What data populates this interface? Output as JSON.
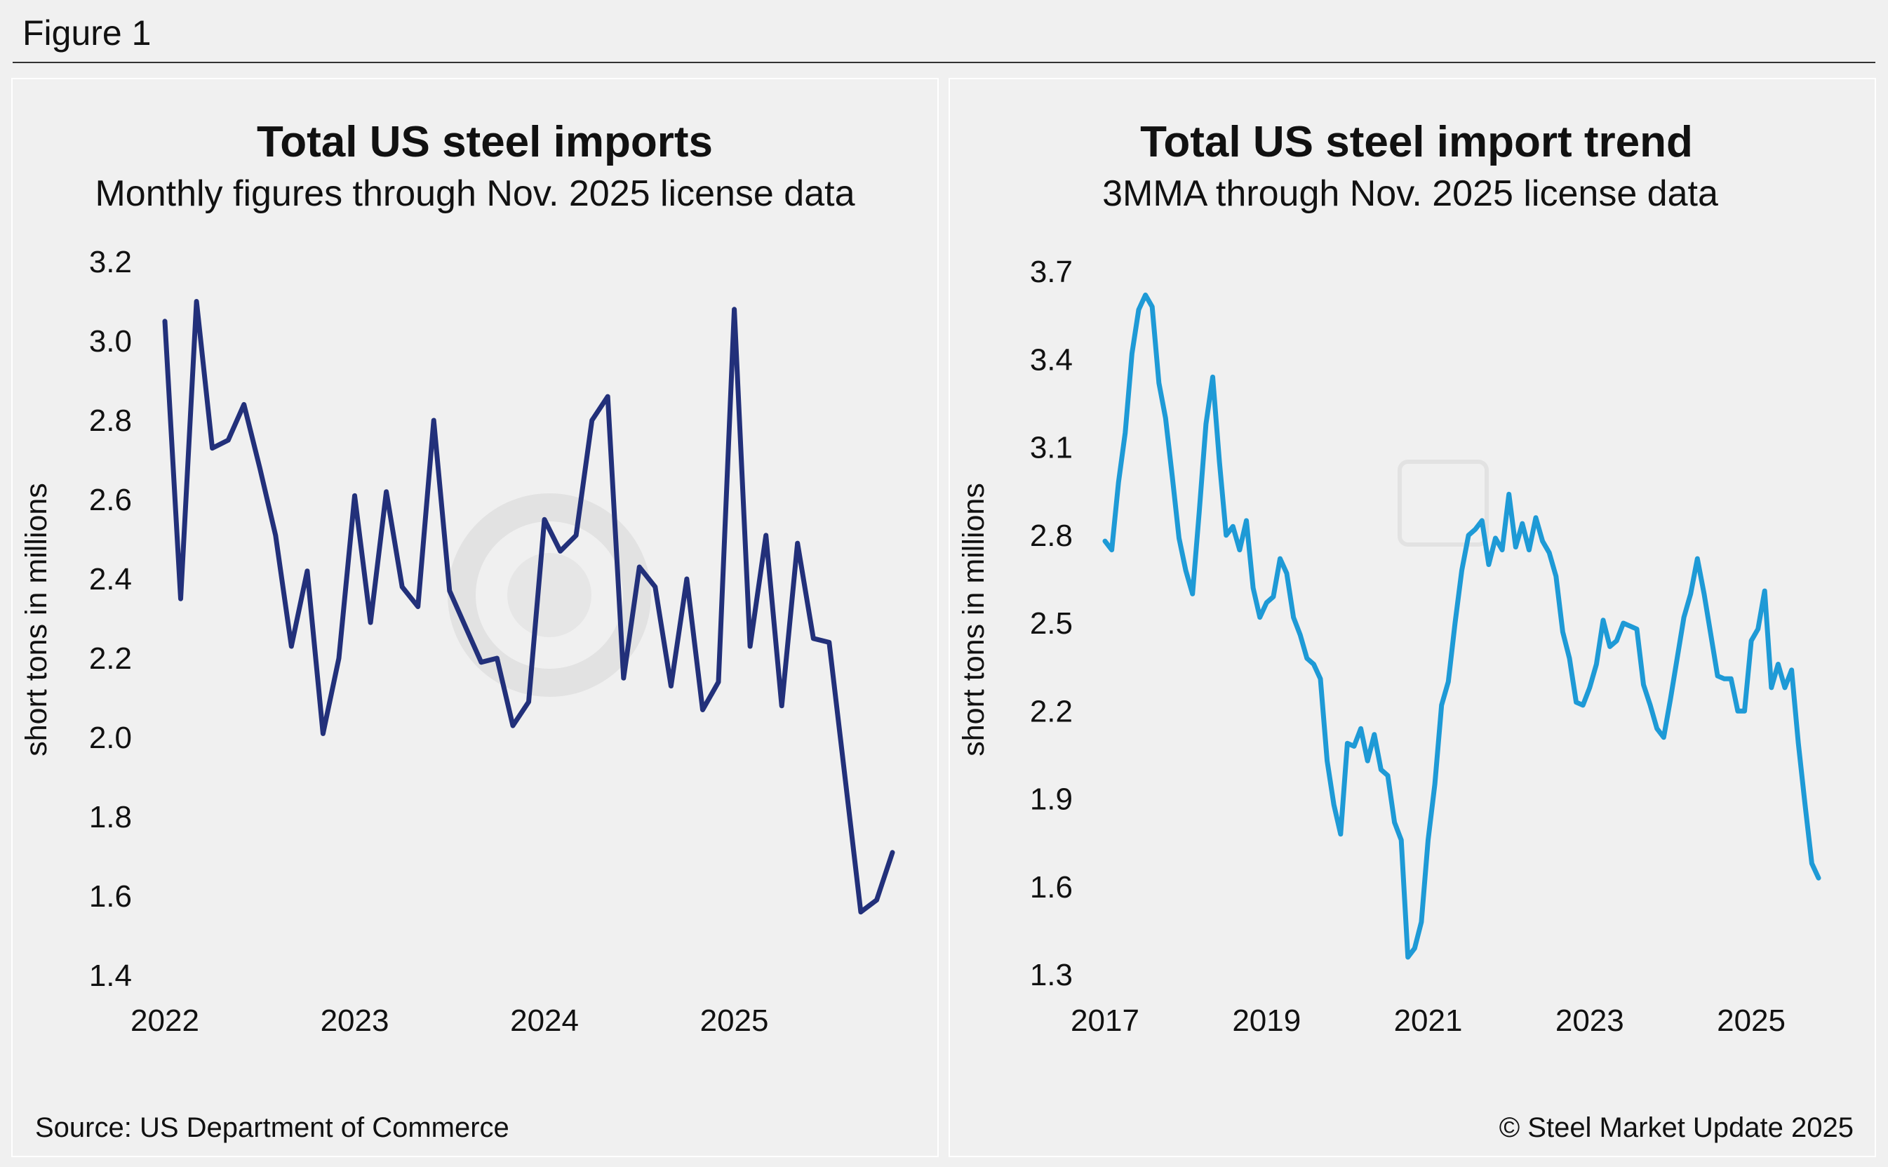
{
  "figure_label": "Figure 1",
  "source": "Source: US Department of Commerce",
  "copyright": "© Steel Market Update 2025",
  "colors": {
    "left_line": "#22307a",
    "right_line": "#1e9ad6",
    "background": "#f0f0f0"
  },
  "chart_data": [
    {
      "type": "line",
      "title": "Total US steel imports",
      "subtitle": "Monthly figures through Nov. 2025 license data",
      "ylabel": "short tons in millions",
      "xlabel": "",
      "ylim": [
        1.4,
        3.2
      ],
      "yticks": [
        "1.4",
        "1.6",
        "1.8",
        "2.0",
        "2.2",
        "2.4",
        "2.6",
        "2.8",
        "3.0",
        "3.2"
      ],
      "xticks": [
        "2022",
        "2023",
        "2024",
        "2025"
      ],
      "x_start": "2022-01",
      "grid": false,
      "series": [
        {
          "values": [
            3.05,
            2.35,
            3.1,
            2.73,
            2.75,
            2.84,
            2.68,
            2.51,
            2.23,
            2.42,
            2.01,
            2.2,
            2.61,
            2.29,
            2.62,
            2.38,
            2.33,
            2.8,
            2.37,
            2.28,
            2.19,
            2.2,
            2.03,
            2.09,
            2.55,
            2.47,
            2.51,
            2.8,
            2.86,
            2.15,
            2.43,
            2.38,
            2.13,
            2.4,
            2.07,
            2.14,
            3.08,
            2.23,
            2.51,
            2.08,
            2.49,
            2.25,
            2.24,
            1.9,
            1.56,
            1.59,
            1.71
          ]
        }
      ]
    },
    {
      "type": "line",
      "title": "Total US steel import trend",
      "subtitle": "3MMA through Nov. 2025 license data",
      "ylabel": "short tons in millions",
      "xlabel": "",
      "ylim": [
        1.3,
        3.7
      ],
      "yticks": [
        "1.3",
        "1.6",
        "1.9",
        "2.2",
        "2.5",
        "2.8",
        "3.1",
        "3.4",
        "3.7"
      ],
      "xticks": [
        "2017",
        "2019",
        "2021",
        "2023",
        "2025"
      ],
      "x_start": "2017-01",
      "grid": false,
      "series": [
        {
          "values": [
            2.78,
            2.75,
            2.98,
            3.15,
            3.42,
            3.57,
            3.62,
            3.58,
            3.32,
            3.2,
            3.0,
            2.79,
            2.68,
            2.6,
            2.88,
            3.18,
            3.34,
            3.05,
            2.8,
            2.83,
            2.75,
            2.85,
            2.62,
            2.52,
            2.57,
            2.59,
            2.72,
            2.67,
            2.52,
            2.46,
            2.38,
            2.36,
            2.31,
            2.03,
            1.88,
            1.78,
            2.09,
            2.08,
            2.14,
            2.03,
            2.12,
            2.0,
            1.98,
            1.82,
            1.76,
            1.36,
            1.39,
            1.48,
            1.76,
            1.95,
            2.22,
            2.3,
            2.5,
            2.68,
            2.8,
            2.82,
            2.85,
            2.7,
            2.79,
            2.75,
            2.94,
            2.76,
            2.84,
            2.75,
            2.86,
            2.78,
            2.74,
            2.66,
            2.47,
            2.38,
            2.23,
            2.22,
            2.28,
            2.36,
            2.51,
            2.42,
            2.44,
            2.5,
            2.49,
            2.48,
            2.29,
            2.22,
            2.14,
            2.11,
            2.24,
            2.38,
            2.52,
            2.6,
            2.72,
            2.6,
            2.46,
            2.32,
            2.31,
            2.31,
            2.2,
            2.2,
            2.44,
            2.48,
            2.61,
            2.28,
            2.36,
            2.28,
            2.34,
            2.09,
            1.88,
            1.68,
            1.63
          ]
        }
      ]
    }
  ]
}
